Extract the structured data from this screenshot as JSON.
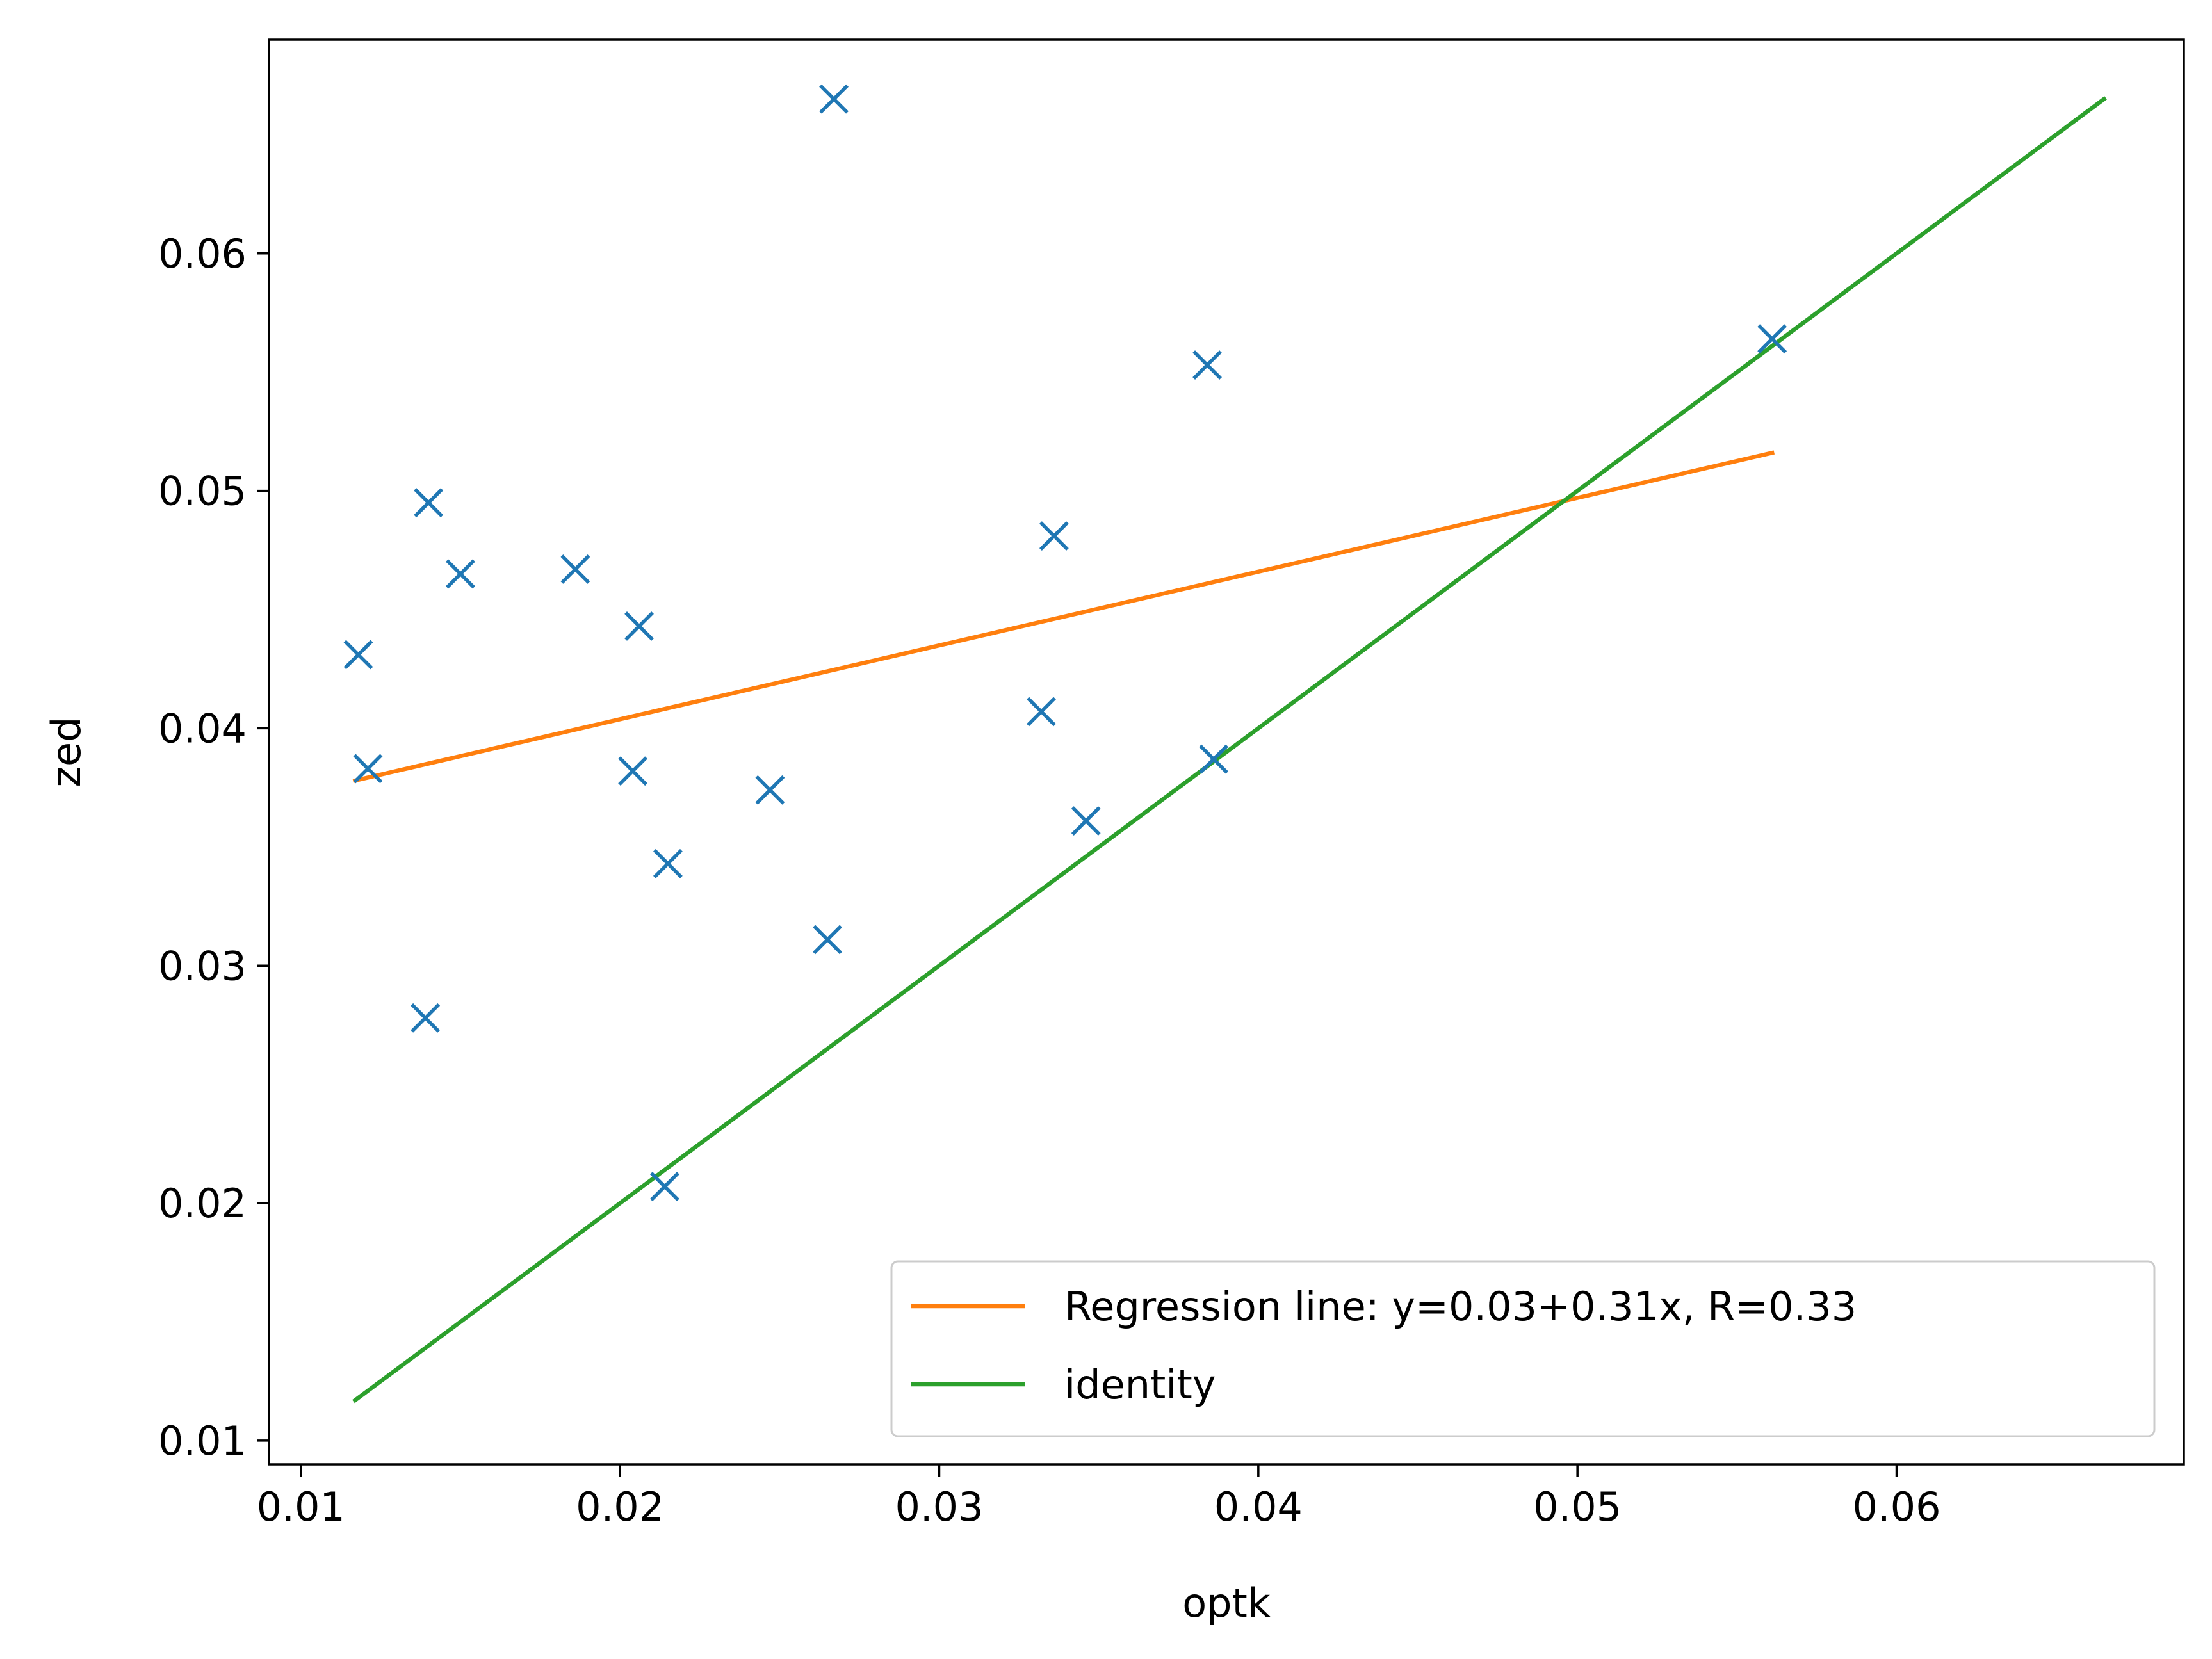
{
  "chart_data": {
    "type": "scatter",
    "title": "",
    "xlabel": "optk",
    "ylabel": "zed",
    "xlim": [
      0.009,
      0.069
    ],
    "ylim": [
      0.009,
      0.069
    ],
    "x_ticks": [
      0.01,
      0.02,
      0.03,
      0.04,
      0.05,
      0.06
    ],
    "x_tick_labels": [
      "0.01",
      "0.02",
      "0.03",
      "0.04",
      "0.05",
      "0.06"
    ],
    "y_ticks": [
      0.01,
      0.02,
      0.03,
      0.04,
      0.05,
      0.06
    ],
    "y_tick_labels": [
      "0.01",
      "0.02",
      "0.03",
      "0.04",
      "0.05",
      "0.06"
    ],
    "grid": false,
    "legend_position": "bottom-right",
    "series": [
      {
        "kind": "scatter",
        "marker": "x",
        "color": "#1f77b4",
        "points": [
          {
            "x": 0.0118,
            "y": 0.0431
          },
          {
            "x": 0.0121,
            "y": 0.0383
          },
          {
            "x": 0.0139,
            "y": 0.0278
          },
          {
            "x": 0.014,
            "y": 0.0495
          },
          {
            "x": 0.015,
            "y": 0.0465
          },
          {
            "x": 0.0186,
            "y": 0.0467
          },
          {
            "x": 0.0204,
            "y": 0.0382
          },
          {
            "x": 0.0206,
            "y": 0.0443
          },
          {
            "x": 0.0214,
            "y": 0.0207
          },
          {
            "x": 0.0215,
            "y": 0.0343
          },
          {
            "x": 0.0247,
            "y": 0.0374
          },
          {
            "x": 0.0265,
            "y": 0.0311
          },
          {
            "x": 0.0267,
            "y": 0.0665
          },
          {
            "x": 0.0332,
            "y": 0.0407
          },
          {
            "x": 0.0336,
            "y": 0.0481
          },
          {
            "x": 0.0346,
            "y": 0.0361
          },
          {
            "x": 0.0384,
            "y": 0.0553
          },
          {
            "x": 0.0386,
            "y": 0.0387
          },
          {
            "x": 0.0561,
            "y": 0.0564
          }
        ]
      },
      {
        "kind": "line",
        "name": "Regression line: y=0.03+0.31x, R=0.33",
        "color": "#ff7f0e",
        "points": [
          {
            "x": 0.0117,
            "y": 0.0378
          },
          {
            "x": 0.0561,
            "y": 0.0516
          }
        ]
      },
      {
        "kind": "line",
        "name": "identity",
        "color": "#2ca02c",
        "points": [
          {
            "x": 0.0117,
            "y": 0.0117
          },
          {
            "x": 0.0665,
            "y": 0.0665
          }
        ]
      }
    ]
  }
}
